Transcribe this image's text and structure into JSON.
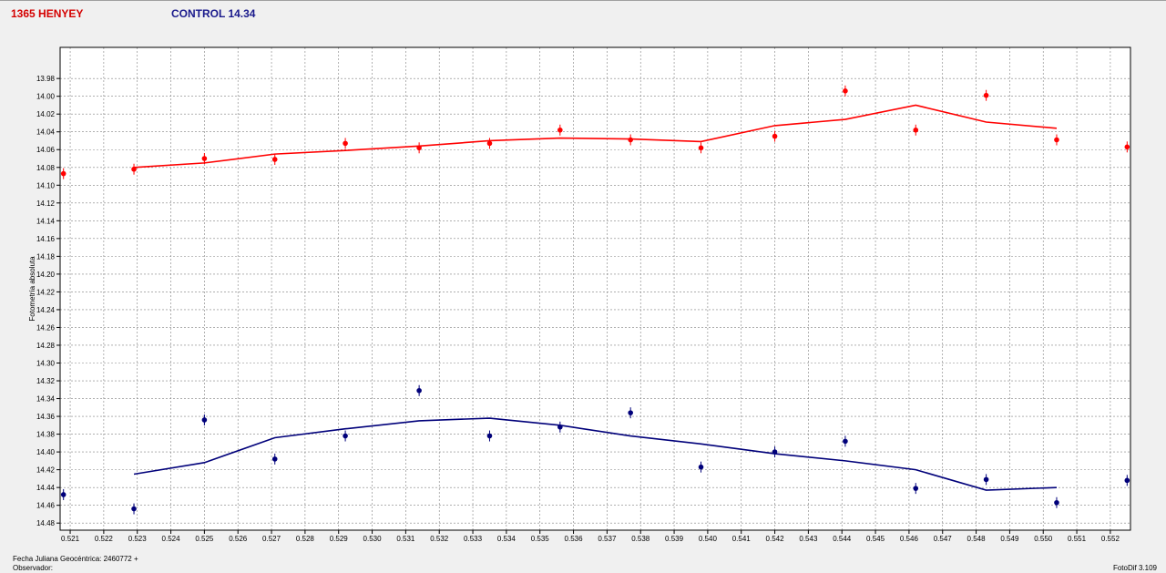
{
  "header": {
    "target_label": "1365 HENYEY",
    "control_label": "CONTROL 14.34"
  },
  "colors": {
    "target": "#ff0000",
    "control": "#00007a",
    "target_title": "#d40000",
    "control_title": "#1a1a8c",
    "grid": "#808080",
    "plot_bg": "#ffffff"
  },
  "footer": {
    "jd_label": "Fecha Juliana Geocéntrica: 2460772 +",
    "observer_label": "Observador:",
    "software": "FotoDif 3.109"
  },
  "chart_data": {
    "type": "scatter",
    "ylabel": "Fotometría absoluta",
    "xlabel": "",
    "xlim": [
      0.5207,
      0.5526
    ],
    "ylim": [
      14.488,
      13.945
    ],
    "y_inverted": true,
    "grid": true,
    "x_ticks": [
      "0.521",
      "0.522",
      "0.523",
      "0.524",
      "0.525",
      "0.526",
      "0.527",
      "0.528",
      "0.529",
      "0.530",
      "0.531",
      "0.532",
      "0.533",
      "0.534",
      "0.535",
      "0.536",
      "0.537",
      "0.538",
      "0.539",
      "0.540",
      "0.541",
      "0.542",
      "0.543",
      "0.544",
      "0.545",
      "0.546",
      "0.547",
      "0.548",
      "0.549",
      "0.550",
      "0.551",
      "0.552"
    ],
    "y_ticks": [
      "13.98",
      "14.00",
      "14.02",
      "14.04",
      "14.06",
      "14.08",
      "14.10",
      "14.12",
      "14.14",
      "14.16",
      "14.18",
      "14.20",
      "14.22",
      "14.24",
      "14.26",
      "14.28",
      "14.30",
      "14.32",
      "14.34",
      "14.36",
      "14.38",
      "14.40",
      "14.42",
      "14.44",
      "14.46",
      "14.48"
    ],
    "series": [
      {
        "color_key": "target",
        "points": [
          [
            0.5208,
            14.087
          ],
          [
            0.5229,
            14.082
          ],
          [
            0.525,
            14.07
          ],
          [
            0.5271,
            14.071
          ],
          [
            0.5292,
            14.053
          ],
          [
            0.5314,
            14.058
          ],
          [
            0.5335,
            14.053
          ],
          [
            0.5356,
            14.038
          ],
          [
            0.5377,
            14.049
          ],
          [
            0.5398,
            14.058
          ],
          [
            0.542,
            14.045
          ],
          [
            0.5441,
            13.994
          ],
          [
            0.5462,
            14.038
          ],
          [
            0.5483,
            13.999
          ],
          [
            0.5504,
            14.049
          ],
          [
            0.5525,
            14.057
          ]
        ],
        "fit": [
          [
            0.5229,
            14.08
          ],
          [
            0.525,
            14.075
          ],
          [
            0.5271,
            14.065
          ],
          [
            0.5292,
            14.061
          ],
          [
            0.5314,
            14.056
          ],
          [
            0.5335,
            14.05
          ],
          [
            0.5356,
            14.047
          ],
          [
            0.5377,
            14.048
          ],
          [
            0.5398,
            14.051
          ],
          [
            0.542,
            14.033
          ],
          [
            0.5441,
            14.026
          ],
          [
            0.5462,
            14.01
          ],
          [
            0.5483,
            14.029
          ],
          [
            0.5504,
            14.036
          ]
        ]
      },
      {
        "color_key": "control",
        "points": [
          [
            0.5208,
            14.448
          ],
          [
            0.5229,
            14.464
          ],
          [
            0.525,
            14.364
          ],
          [
            0.5271,
            14.408
          ],
          [
            0.5292,
            14.382
          ],
          [
            0.5314,
            14.331
          ],
          [
            0.5335,
            14.382
          ],
          [
            0.5356,
            14.372
          ],
          [
            0.5377,
            14.356
          ],
          [
            0.5398,
            14.417
          ],
          [
            0.542,
            14.4
          ],
          [
            0.5441,
            14.388
          ],
          [
            0.5462,
            14.441
          ],
          [
            0.5483,
            14.431
          ],
          [
            0.5504,
            14.457
          ],
          [
            0.5525,
            14.432
          ]
        ],
        "fit": [
          [
            0.5229,
            14.425
          ],
          [
            0.525,
            14.412
          ],
          [
            0.5271,
            14.384
          ],
          [
            0.5292,
            14.374
          ],
          [
            0.5314,
            14.365
          ],
          [
            0.5335,
            14.362
          ],
          [
            0.5356,
            14.37
          ],
          [
            0.5377,
            14.382
          ],
          [
            0.5398,
            14.391
          ],
          [
            0.542,
            14.402
          ],
          [
            0.5441,
            14.41
          ],
          [
            0.5462,
            14.42
          ],
          [
            0.5483,
            14.443
          ],
          [
            0.5504,
            14.44
          ]
        ]
      }
    ]
  }
}
